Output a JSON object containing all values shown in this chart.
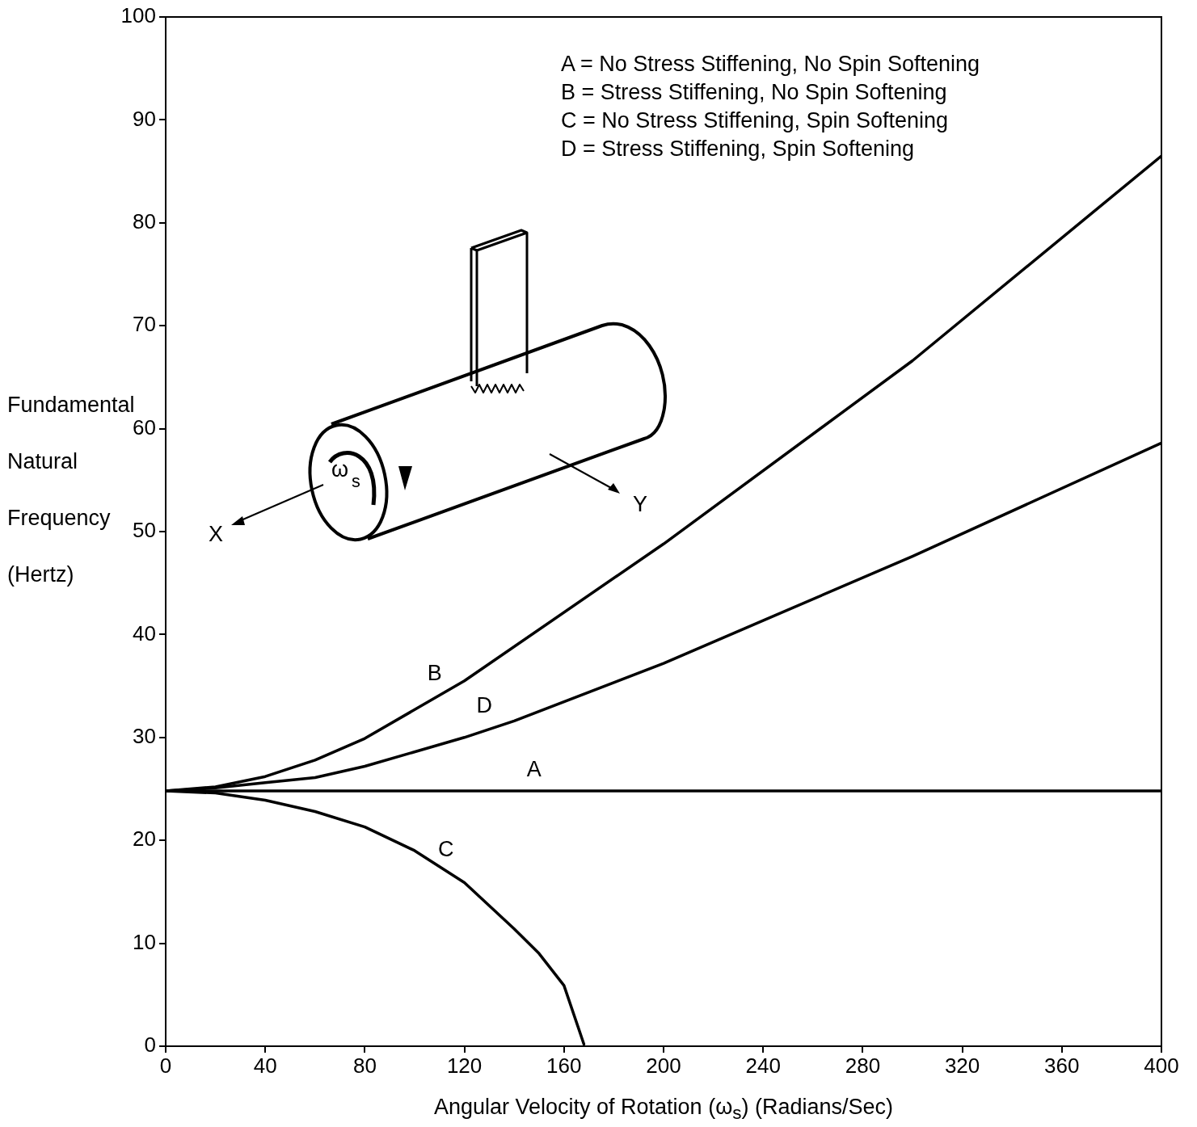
{
  "chart_data": {
    "type": "line",
    "xlabel": "Angular Velocity of Rotation (ω$_{s}$) (Radians/Sec)",
    "ylabel": "Fundamental Natural Frequency (Hertz)",
    "xlim": [
      0,
      400
    ],
    "xticks": [
      0,
      40,
      80,
      120,
      160,
      200,
      240,
      280,
      320,
      360,
      400
    ],
    "ylim": [
      0,
      100
    ],
    "yticks": [
      0,
      10,
      20,
      30,
      40,
      50,
      60,
      70,
      80,
      90,
      100
    ],
    "grid": false,
    "legend": false,
    "marker": "none",
    "line_style": "solid",
    "series": [
      {
        "name": "A",
        "color": "#000000",
        "x": [
          0,
          400
        ],
        "values": [
          24.8,
          24.8
        ]
      },
      {
        "name": "B",
        "color": "#000000",
        "x": [
          0,
          20,
          40,
          60,
          80,
          120,
          200,
          300,
          400
        ],
        "values": [
          24.8,
          25.2,
          26.2,
          27.8,
          29.9,
          35.5,
          48.8,
          66.6,
          86.5
        ]
      },
      {
        "name": "C",
        "color": "#000000",
        "x": [
          0,
          20,
          40,
          60,
          80,
          100,
          120,
          140,
          150,
          160,
          168
        ],
        "values": [
          24.8,
          24.6,
          23.9,
          22.8,
          21.3,
          19,
          15.9,
          11.4,
          9,
          5.9,
          0.2
        ]
      },
      {
        "name": "D",
        "color": "#000000",
        "x": [
          0,
          20,
          40,
          60,
          80,
          120,
          140,
          200,
          300,
          400
        ],
        "values": [
          24.8,
          25.1,
          25.6,
          26.1,
          27.2,
          30,
          31.6,
          37.2,
          47.6,
          58.6
        ]
      }
    ],
    "annotations": [
      "A = No Stress Stiffening, No Spin Softening",
      "B = Stress Stiffening, No Spin Softening",
      "C = No Stress Stiffening, Spin Softening",
      "D = Stress Stiffening, Spin Softening",
      "ω$_{s}$",
      "X",
      "Y"
    ]
  }
}
